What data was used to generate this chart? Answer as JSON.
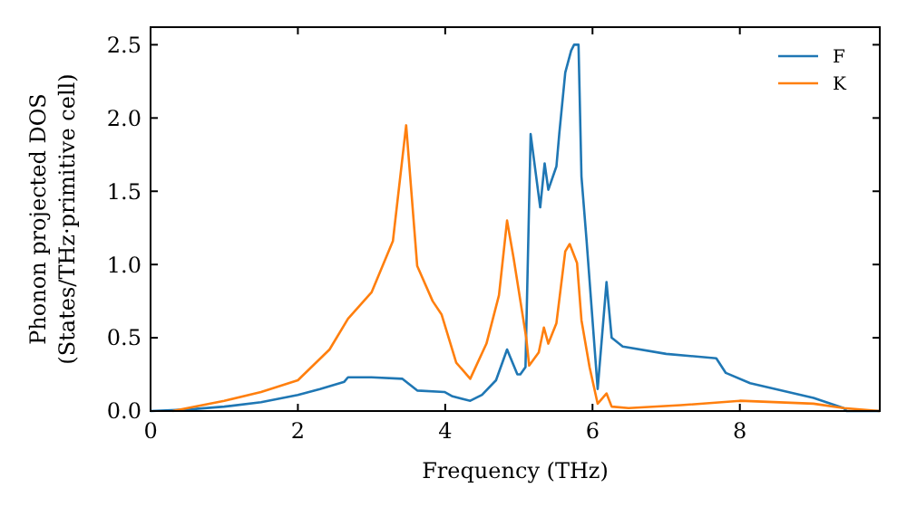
{
  "chart_data": {
    "type": "line",
    "xlabel": "Frequency (THz)",
    "ylabel": "Phonon projected DOS\n(States/THz·primitive cell)",
    "xlim": [
      0,
      9.9
    ],
    "ylim": [
      0,
      2.62
    ],
    "xticks": [
      0,
      2,
      4,
      6,
      8
    ],
    "yticks": [
      {
        "value": 0,
        "label": "0.0"
      },
      {
        "value": 0.5,
        "label": "0.5"
      },
      {
        "value": 1,
        "label": "1.0"
      },
      {
        "value": 1.5,
        "label": "1.5"
      },
      {
        "value": 2,
        "label": "2.0"
      },
      {
        "value": 2.5,
        "label": "2.5"
      }
    ],
    "legend": "top right",
    "grid": false,
    "marker": "none",
    "line_style": "solid",
    "series": [
      {
        "name": "F",
        "color": "#1f77b4",
        "x": [
          0,
          0.5,
          1,
          1.5,
          2,
          2.3,
          2.63,
          2.68,
          3.0,
          3.42,
          3.62,
          3.99,
          4.1,
          4.34,
          4.5,
          4.69,
          4.84,
          4.98,
          5.02,
          5.09,
          5.16,
          5.29,
          5.35,
          5.4,
          5.51,
          5.55,
          5.63,
          5.71,
          5.75,
          5.81,
          5.85,
          5.92,
          6.07,
          6.19,
          6.26,
          6.41,
          7.0,
          7.68,
          7.81,
          8.14,
          9.0,
          9.41,
          9.45,
          9.9
        ],
        "values": [
          0,
          0.01,
          0.03,
          0.06,
          0.11,
          0.15,
          0.2,
          0.23,
          0.23,
          0.22,
          0.14,
          0.13,
          0.1,
          0.07,
          0.11,
          0.21,
          0.42,
          0.25,
          0.25,
          0.3,
          1.89,
          1.39,
          1.69,
          1.51,
          1.67,
          1.9,
          2.31,
          2.46,
          2.5,
          2.5,
          1.6,
          1.16,
          0.15,
          0.88,
          0.5,
          0.44,
          0.39,
          0.36,
          0.26,
          0.19,
          0.09,
          0.02,
          0,
          0
        ]
      },
      {
        "name": "K",
        "color": "#ff7f0e",
        "x": [
          0.3,
          0.5,
          1,
          1.5,
          2,
          2.43,
          2.68,
          3.0,
          3.29,
          3.47,
          3.62,
          3.83,
          3.95,
          4.15,
          4.34,
          4.56,
          4.73,
          4.84,
          4.93,
          5.1,
          5.14,
          5.27,
          5.34,
          5.4,
          5.51,
          5.63,
          5.69,
          5.79,
          5.85,
          5.96,
          6.07,
          6.19,
          6.26,
          6.49,
          7.2,
          8.0,
          9.0,
          9.41,
          9.9
        ],
        "values": [
          0,
          0.02,
          0.07,
          0.13,
          0.21,
          0.42,
          0.63,
          0.81,
          1.16,
          1.95,
          0.99,
          0.75,
          0.66,
          0.33,
          0.22,
          0.46,
          0.79,
          1.3,
          1.04,
          0.5,
          0.31,
          0.4,
          0.57,
          0.46,
          0.6,
          1.09,
          1.14,
          1.01,
          0.62,
          0.3,
          0.05,
          0.12,
          0.03,
          0.02,
          0.04,
          0.07,
          0.05,
          0.02,
          0
        ]
      }
    ]
  }
}
